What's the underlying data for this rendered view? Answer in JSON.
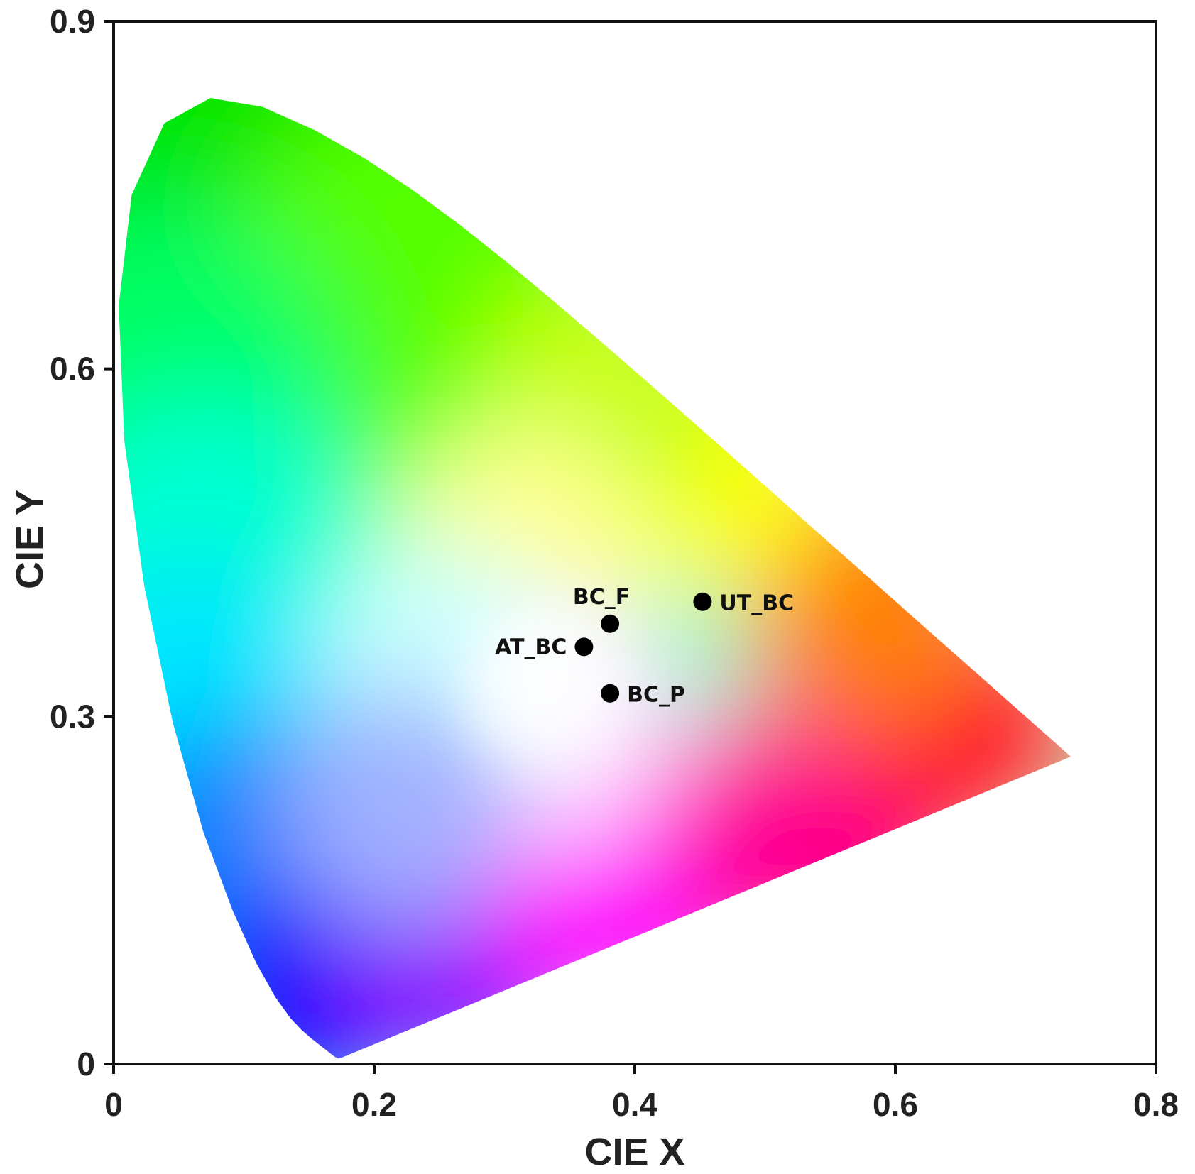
{
  "chart_data": {
    "type": "scatter",
    "title": "",
    "xlabel": "CIE X",
    "ylabel": "CIE Y",
    "xlim": [
      0,
      0.8
    ],
    "ylim": [
      0,
      0.9
    ],
    "x_ticks": [
      "0",
      "0.2",
      "0.4",
      "0.6",
      "0.8"
    ],
    "y_ticks": [
      "0",
      "0.3",
      "0.6",
      "0.9"
    ],
    "grid": false,
    "background": "CIE 1931 chromaticity diagram",
    "marker_color": "#000000",
    "points": [
      {
        "label": "BC_F",
        "x": 0.381,
        "y": 0.38
      },
      {
        "label": "UT_BC",
        "x": 0.452,
        "y": 0.399
      },
      {
        "label": "AT_BC",
        "x": 0.361,
        "y": 0.36
      },
      {
        "label": "BC_P",
        "x": 0.381,
        "y": 0.32
      }
    ]
  }
}
